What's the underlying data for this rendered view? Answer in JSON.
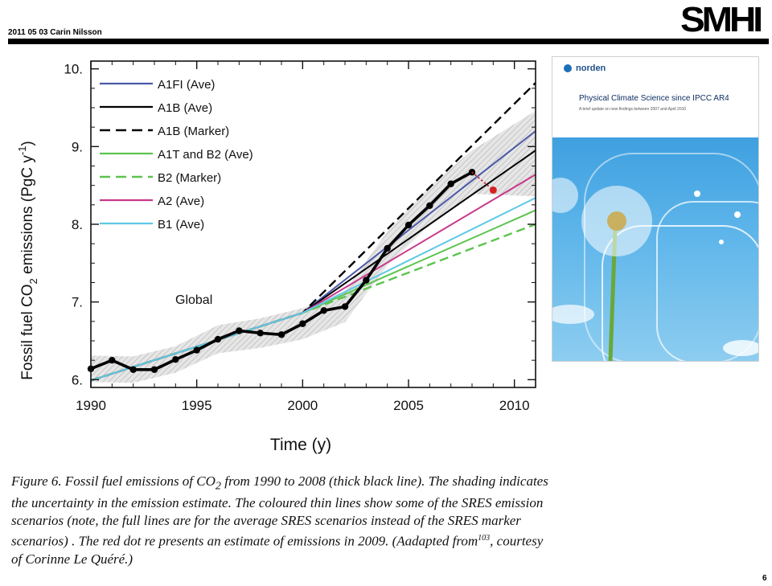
{
  "header": {
    "date_author": "2011 05 03 Carin Nilsson",
    "logo": "SMHI"
  },
  "page_number": "6",
  "chart_data": {
    "type": "line",
    "ylabel": "Fossil fuel CO2 emissions (PgC y-1)",
    "ylabel_parts": {
      "a": "Fossil fuel CO",
      "sub": "2",
      "b": " emissions (PgC y",
      "sup": "-1",
      "c": ")"
    },
    "xlabel": "Time (y)",
    "xlim": [
      1990,
      2011
    ],
    "ylim": [
      5.9,
      10.1
    ],
    "xticks": [
      1990,
      1995,
      2000,
      2005,
      2010
    ],
    "xtick_labels": [
      "1990",
      "1995",
      "2000",
      "2005",
      "2010"
    ],
    "yticks": [
      6,
      7,
      8,
      9,
      10
    ],
    "ytick_labels": [
      "6.",
      "7.",
      "8.",
      "9.",
      "10."
    ],
    "annotation": "Global",
    "legend_position": "top-left",
    "observed": {
      "x": [
        1990,
        1991,
        1992,
        1993,
        1994,
        1995,
        1996,
        1997,
        1998,
        1999,
        2000,
        2001,
        2002,
        2003,
        2004,
        2005,
        2006,
        2007,
        2008
      ],
      "y": [
        6.14,
        6.25,
        6.13,
        6.13,
        6.26,
        6.38,
        6.52,
        6.63,
        6.6,
        6.58,
        6.72,
        6.89,
        6.94,
        7.28,
        7.69,
        7.99,
        8.24,
        8.52,
        8.67
      ],
      "color": "#000000"
    },
    "estimate_2009": {
      "x": 2009,
      "y": 8.44,
      "color": "#d42020"
    },
    "uncertainty_band": {
      "x": [
        1990,
        1992,
        1994,
        1996,
        1998,
        2000,
        2002,
        2004,
        2006,
        2008,
        2011
      ],
      "half_width": [
        0.17,
        0.17,
        0.17,
        0.18,
        0.19,
        0.2,
        0.2,
        0.22,
        0.25,
        0.28,
        0.55
      ]
    },
    "series": [
      {
        "name": "A1FI (Ave)",
        "color": "#4b5aa8",
        "dash": "solid",
        "x": [
          1990,
          2000,
          2011
        ],
        "y": [
          5.99,
          6.86,
          9.2
        ]
      },
      {
        "name": "A1B (Ave)",
        "color": "#000000",
        "dash": "solid",
        "x": [
          1990,
          2000,
          2011
        ],
        "y": [
          5.99,
          6.86,
          8.95
        ]
      },
      {
        "name": "A1B (Marker)",
        "color": "#000000",
        "dash": "dashed",
        "x": [
          1990,
          2000,
          2011
        ],
        "y": [
          5.99,
          6.86,
          9.82
        ]
      },
      {
        "name": "A1T and B2 (Ave)",
        "color": "#5cc44e",
        "dash": "solid",
        "x": [
          1990,
          2000,
          2011
        ],
        "y": [
          5.99,
          6.86,
          8.18
        ]
      },
      {
        "name": "B2 (Marker)",
        "color": "#5cc44e",
        "dash": "dashed",
        "x": [
          1990,
          2000,
          2011
        ],
        "y": [
          5.99,
          6.86,
          8.0
        ]
      },
      {
        "name": "A2 (Ave)",
        "color": "#c8388a",
        "dash": "solid",
        "x": [
          1990,
          2000,
          2011
        ],
        "y": [
          5.99,
          6.86,
          8.64
        ]
      },
      {
        "name": "B1 (Ave)",
        "color": "#5ec8e6",
        "dash": "solid",
        "x": [
          1990,
          2000,
          2011
        ],
        "y": [
          5.99,
          6.86,
          8.34
        ]
      }
    ]
  },
  "caption": {
    "text_before": "Figure 6. Fossil fuel emissions of CO",
    "sub": "2",
    "text_mid": " from 1990 to 2008 (thick black line). The shading indicates the uncertainty in the emission estimate. The coloured thin lines show some of the SRES emission scenarios (note, the full lines are for the average SRES scenarios instead of the SRES marker scenarios) . The red dot re presents an estimate of emissions in 2009. (Aadapted from",
    "sup": "103",
    "text_after": ", courtesy of Corinne Le Quéré.)"
  },
  "report_cover": {
    "logo": "norden",
    "title": "Physical Climate Science since IPCC AR4",
    "subtitle": "A brief update on new findings between 2007 and April 2010"
  }
}
